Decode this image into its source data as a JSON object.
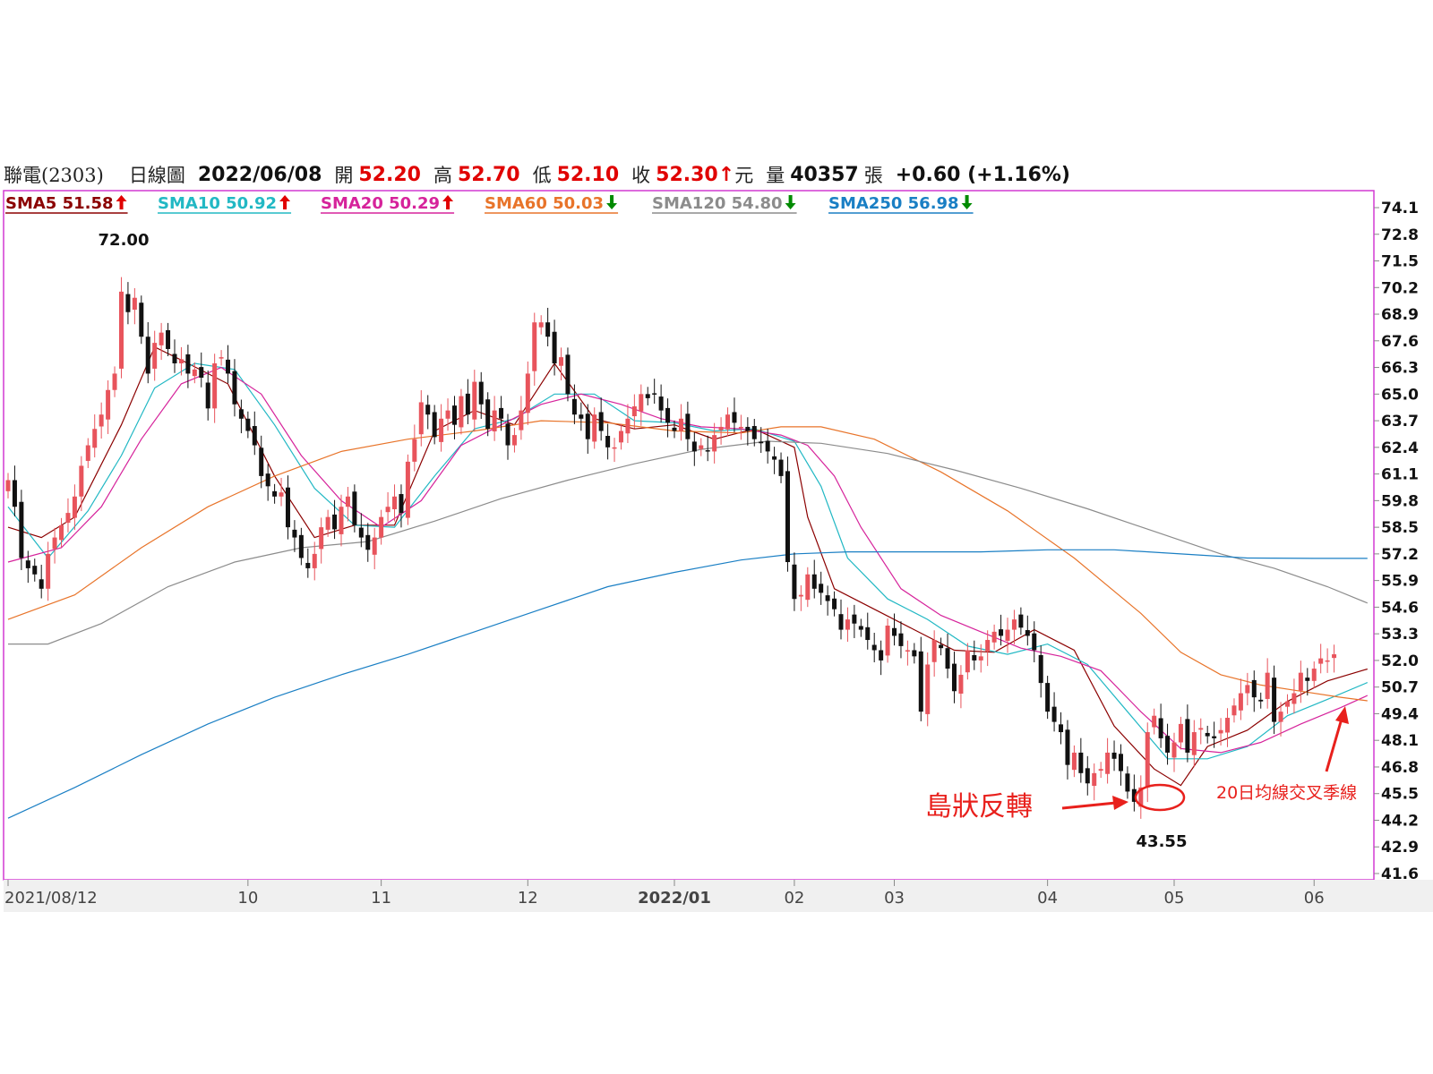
{
  "header": {
    "stock": "聯電(2303)",
    "chart_kind": "日線圖",
    "date": "2022/06/08",
    "open_label": "開",
    "open": "52.20",
    "high_label": "高",
    "high": "52.70",
    "low_label": "低",
    "low": "52.10",
    "close_label": "收",
    "close": "52.30",
    "close_arrow": "↑",
    "unit": "元",
    "volume_label": "量",
    "volume": "40357",
    "volume_unit": "張",
    "change": "+0.60 (+1.16%)"
  },
  "colors": {
    "up": "#e8545c",
    "down": "#111111",
    "border": "#d23ad2",
    "sma5": "#8b0000",
    "sma10": "#22b8c4",
    "sma20": "#d6239b",
    "sma60": "#e8742a",
    "sma120": "#8c8c8c",
    "sma250": "#1a7fc4",
    "annotation": "#e8201c",
    "arrow_up": "#e00000",
    "arrow_down": "#008a00"
  },
  "legend": [
    {
      "label": "SMA5",
      "value": "51.58",
      "arrow": "up",
      "color": "#8b0000"
    },
    {
      "label": "SMA10",
      "value": "50.92",
      "arrow": "up",
      "color": "#22b8c4"
    },
    {
      "label": "SMA20",
      "value": "50.29",
      "arrow": "up",
      "color": "#d6239b"
    },
    {
      "label": "SMA60",
      "value": "50.03",
      "arrow": "down",
      "color": "#e8742a"
    },
    {
      "label": "SMA120",
      "value": "54.80",
      "arrow": "down",
      "color": "#8c8c8c"
    },
    {
      "label": "SMA250",
      "value": "56.98",
      "arrow": "down",
      "color": "#1a7fc4"
    }
  ],
  "annotations": {
    "high_label": "72.00",
    "low_label": "43.55",
    "island_reversal": "島狀反轉",
    "ma_cross": "20日均線交叉季線"
  },
  "chart_data": {
    "type": "candlestick",
    "title": "聯電(2303) 日線圖",
    "ylim": [
      41.6,
      74.1
    ],
    "yticks": [
      "74.1",
      "72.8",
      "71.5",
      "70.2",
      "68.9",
      "67.6",
      "66.3",
      "65.0",
      "63.7",
      "62.4",
      "61.1",
      "59.8",
      "58.5",
      "57.2",
      "55.9",
      "54.6",
      "53.3",
      "52.0",
      "50.7",
      "49.4",
      "48.1",
      "46.8",
      "45.5",
      "44.2",
      "42.9",
      "41.6"
    ],
    "xticks": [
      {
        "label": "2021/08/12",
        "index": 0
      },
      {
        "label": "10",
        "index": 36
      },
      {
        "label": "11",
        "index": 56
      },
      {
        "label": "12",
        "index": 78
      },
      {
        "label": "2022/01",
        "index": 100
      },
      {
        "label": "02",
        "index": 118
      },
      {
        "label": "03",
        "index": 133
      },
      {
        "label": "04",
        "index": 156
      },
      {
        "label": "05",
        "index": 175
      },
      {
        "label": "06",
        "index": 196
      }
    ],
    "candles_note": "Approximate daily closes read from chart; open/high/low derived per candle",
    "closes": [
      60.8,
      59.5,
      57.0,
      56.5,
      56.2,
      55.5,
      57.2,
      58.0,
      58.6,
      59.2,
      60.0,
      61.5,
      62.5,
      63.3,
      64.0,
      65.2,
      66.0,
      70.0,
      69.0,
      69.7,
      67.8,
      66.0,
      67.5,
      68.0,
      67.2,
      66.5,
      66.7,
      66.0,
      66.2,
      65.8,
      64.3,
      66.5,
      66.8,
      66.0,
      64.5,
      63.8,
      63.2,
      62.5,
      61.0,
      60.5,
      60.0,
      60.2,
      58.5,
      58.0,
      57.0,
      56.5,
      57.2,
      58.5,
      59.0,
      58.4,
      59.5,
      60.0,
      58.6,
      58.0,
      57.4,
      58.0,
      59.0,
      59.5,
      60.0,
      59.2,
      61.7,
      62.8,
      64.6,
      64.0,
      62.9,
      63.8,
      64.2,
      63.5,
      64.9,
      64.0,
      65.6,
      64.5,
      63.3,
      64.2,
      63.8,
      62.5,
      63.0,
      64.2,
      66.0,
      68.5,
      68.5,
      67.8,
      66.5,
      66.8,
      65.0,
      64.0,
      63.8,
      62.8,
      64.0,
      63.2,
      62.4,
      62.4,
      63.2,
      63.8,
      64.4,
      65.0,
      64.8,
      65.0,
      64.2,
      63.6,
      63.2,
      63.8,
      62.8,
      62.2,
      62.5,
      62.2,
      63.0,
      63.4,
      64.0,
      63.6,
      63.4,
      63.2,
      62.8,
      62.6,
      62.2,
      61.8,
      61.0,
      56.8,
      55.0,
      55.2,
      56.2,
      55.5,
      55.3,
      54.9,
      54.5,
      53.5,
      54.0,
      53.8,
      53.5,
      53.0,
      52.5,
      52.0,
      53.7,
      53.2,
      52.7,
      52.5,
      52.2,
      49.5,
      51.8,
      53.0,
      52.6,
      51.6,
      50.5,
      51.3,
      52.5,
      52.0,
      52.2,
      53.0,
      53.4,
      53.2,
      53.5,
      54.0,
      53.6,
      53.2,
      52.5,
      50.9,
      49.5,
      49.0,
      48.5,
      46.9,
      47.5,
      46.5,
      46.0,
      46.5,
      46.7,
      47.5,
      47.2,
      46.6,
      45.6,
      45.1,
      45.8,
      48.5,
      49.3,
      48.2,
      47.5,
      48.0,
      48.9,
      47.5,
      48.5,
      48.7,
      48.3,
      48.2,
      48.6,
      49.2,
      49.8,
      50.4,
      50.8,
      50.2,
      50.0,
      51.4,
      49.0,
      49.5,
      50.0,
      50.4,
      51.4,
      51.0,
      51.6,
      52.1,
      52.0,
      52.3
    ],
    "sma_series": [
      {
        "name": "SMA5",
        "points": [
          [
            0,
            58.5
          ],
          [
            5,
            58.0
          ],
          [
            10,
            59.0
          ],
          [
            17,
            63.5
          ],
          [
            22,
            67.3
          ],
          [
            27,
            66.5
          ],
          [
            33,
            65.5
          ],
          [
            40,
            61.0
          ],
          [
            46,
            58.0
          ],
          [
            52,
            58.6
          ],
          [
            58,
            58.6
          ],
          [
            64,
            63.2
          ],
          [
            70,
            64.2
          ],
          [
            76,
            63.5
          ],
          [
            82,
            66.5
          ],
          [
            88,
            63.8
          ],
          [
            94,
            63.3
          ],
          [
            100,
            63.5
          ],
          [
            106,
            62.8
          ],
          [
            112,
            63.3
          ],
          [
            118,
            62.4
          ],
          [
            120,
            59.0
          ],
          [
            124,
            55.5
          ],
          [
            130,
            54.5
          ],
          [
            136,
            53.5
          ],
          [
            142,
            52.5
          ],
          [
            148,
            52.4
          ],
          [
            154,
            53.5
          ],
          [
            160,
            52.5
          ],
          [
            166,
            48.8
          ],
          [
            172,
            46.7
          ],
          [
            176,
            45.9
          ],
          [
            180,
            47.8
          ],
          [
            186,
            48.6
          ],
          [
            192,
            50.0
          ],
          [
            198,
            51.0
          ],
          [
            204,
            51.58
          ]
        ]
      },
      {
        "name": "SMA10",
        "points": [
          [
            0,
            59.5
          ],
          [
            6,
            57.0
          ],
          [
            12,
            59.3
          ],
          [
            17,
            62.0
          ],
          [
            22,
            65.3
          ],
          [
            28,
            66.5
          ],
          [
            34,
            66.2
          ],
          [
            40,
            63.5
          ],
          [
            46,
            60.4
          ],
          [
            52,
            58.6
          ],
          [
            58,
            58.5
          ],
          [
            64,
            61.0
          ],
          [
            70,
            63.3
          ],
          [
            76,
            63.8
          ],
          [
            82,
            65.0
          ],
          [
            88,
            65.0
          ],
          [
            94,
            63.7
          ],
          [
            100,
            63.6
          ],
          [
            106,
            63.2
          ],
          [
            112,
            63.3
          ],
          [
            118,
            62.7
          ],
          [
            122,
            60.5
          ],
          [
            126,
            57.0
          ],
          [
            132,
            55.0
          ],
          [
            138,
            54.0
          ],
          [
            144,
            52.7
          ],
          [
            150,
            52.3
          ],
          [
            156,
            52.8
          ],
          [
            162,
            51.8
          ],
          [
            168,
            49.5
          ],
          [
            174,
            47.2
          ],
          [
            180,
            47.2
          ],
          [
            186,
            47.8
          ],
          [
            192,
            49.3
          ],
          [
            198,
            50.1
          ],
          [
            204,
            50.92
          ]
        ]
      },
      {
        "name": "SMA20",
        "points": [
          [
            0,
            56.8
          ],
          [
            8,
            57.5
          ],
          [
            14,
            59.5
          ],
          [
            20,
            62.8
          ],
          [
            26,
            65.5
          ],
          [
            32,
            66.3
          ],
          [
            38,
            65.0
          ],
          [
            44,
            62.0
          ],
          [
            50,
            59.8
          ],
          [
            56,
            58.5
          ],
          [
            62,
            59.8
          ],
          [
            68,
            62.5
          ],
          [
            74,
            63.5
          ],
          [
            80,
            64.5
          ],
          [
            86,
            65.0
          ],
          [
            92,
            64.5
          ],
          [
            98,
            63.8
          ],
          [
            104,
            63.4
          ],
          [
            110,
            63.3
          ],
          [
            116,
            63.0
          ],
          [
            120,
            62.5
          ],
          [
            124,
            61.0
          ],
          [
            128,
            58.5
          ],
          [
            134,
            55.5
          ],
          [
            140,
            54.2
          ],
          [
            146,
            53.4
          ],
          [
            152,
            52.6
          ],
          [
            158,
            52.2
          ],
          [
            164,
            51.5
          ],
          [
            170,
            49.5
          ],
          [
            176,
            47.7
          ],
          [
            182,
            47.5
          ],
          [
            188,
            48.0
          ],
          [
            194,
            48.9
          ],
          [
            200,
            49.7
          ],
          [
            204,
            50.29
          ]
        ]
      },
      {
        "name": "SMA60",
        "points": [
          [
            0,
            54.0
          ],
          [
            10,
            55.2
          ],
          [
            20,
            57.5
          ],
          [
            30,
            59.5
          ],
          [
            40,
            61.0
          ],
          [
            50,
            62.2
          ],
          [
            60,
            62.8
          ],
          [
            70,
            63.2
          ],
          [
            80,
            63.7
          ],
          [
            90,
            63.6
          ],
          [
            100,
            63.2
          ],
          [
            110,
            63.1
          ],
          [
            116,
            63.4
          ],
          [
            122,
            63.4
          ],
          [
            130,
            62.8
          ],
          [
            140,
            61.2
          ],
          [
            150,
            59.3
          ],
          [
            160,
            57.0
          ],
          [
            170,
            54.3
          ],
          [
            176,
            52.4
          ],
          [
            182,
            51.3
          ],
          [
            188,
            50.8
          ],
          [
            194,
            50.5
          ],
          [
            200,
            50.2
          ],
          [
            204,
            50.03
          ]
        ]
      },
      {
        "name": "SMA120",
        "points": [
          [
            0,
            52.8
          ],
          [
            6,
            52.8
          ],
          [
            14,
            53.8
          ],
          [
            24,
            55.6
          ],
          [
            34,
            56.8
          ],
          [
            44,
            57.5
          ],
          [
            54,
            57.8
          ],
          [
            64,
            58.8
          ],
          [
            74,
            59.9
          ],
          [
            84,
            60.8
          ],
          [
            94,
            61.6
          ],
          [
            104,
            62.3
          ],
          [
            114,
            62.7
          ],
          [
            122,
            62.6
          ],
          [
            132,
            62.1
          ],
          [
            142,
            61.3
          ],
          [
            152,
            60.4
          ],
          [
            162,
            59.4
          ],
          [
            172,
            58.3
          ],
          [
            182,
            57.2
          ],
          [
            190,
            56.5
          ],
          [
            198,
            55.6
          ],
          [
            204,
            54.8
          ]
        ]
      },
      {
        "name": "SMA250",
        "points": [
          [
            0,
            44.3
          ],
          [
            10,
            45.8
          ],
          [
            20,
            47.4
          ],
          [
            30,
            48.9
          ],
          [
            40,
            50.2
          ],
          [
            50,
            51.3
          ],
          [
            60,
            52.3
          ],
          [
            70,
            53.4
          ],
          [
            80,
            54.5
          ],
          [
            90,
            55.6
          ],
          [
            100,
            56.3
          ],
          [
            110,
            56.9
          ],
          [
            118,
            57.2
          ],
          [
            126,
            57.3
          ],
          [
            136,
            57.3
          ],
          [
            146,
            57.3
          ],
          [
            156,
            57.4
          ],
          [
            166,
            57.4
          ],
          [
            176,
            57.2
          ],
          [
            186,
            57.0
          ],
          [
            196,
            56.98
          ],
          [
            204,
            56.98
          ]
        ]
      }
    ]
  }
}
